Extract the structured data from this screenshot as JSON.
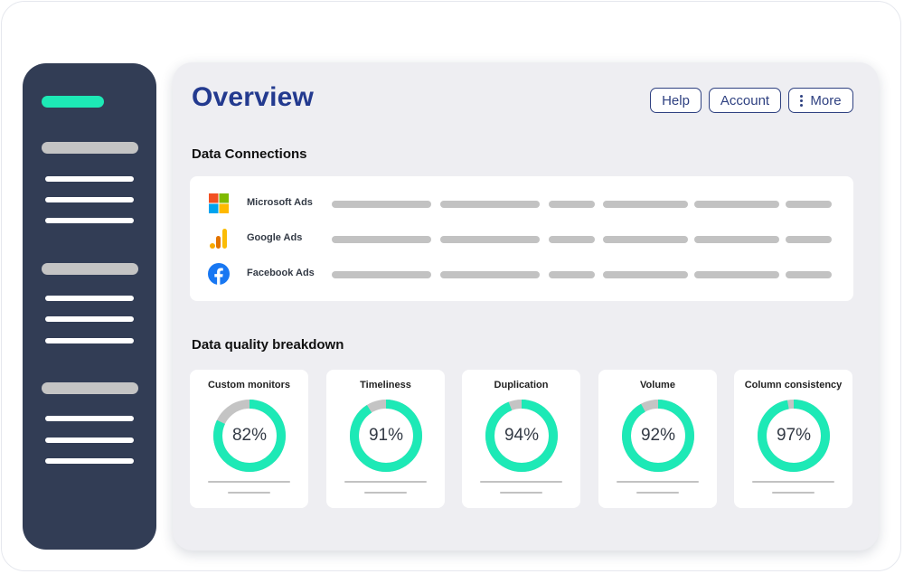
{
  "main": {
    "title": "Overview",
    "header_buttons": {
      "help": "Help",
      "account": "Account",
      "more": "More"
    },
    "connections_title": "Data Connections",
    "connections": [
      {
        "name": "Microsoft Ads",
        "icon": "microsoft-icon"
      },
      {
        "name": "Google Ads",
        "icon": "google-ads-icon"
      },
      {
        "name": "Facebook Ads",
        "icon": "facebook-icon"
      }
    ],
    "quality_title": "Data quality breakdown",
    "quality": [
      {
        "label": "Custom monitors",
        "value": 82,
        "display": "82%"
      },
      {
        "label": "Timeliness",
        "value": 91,
        "display": "91%"
      },
      {
        "label": "Duplication",
        "value": 94,
        "display": "94%"
      },
      {
        "label": "Volume",
        "value": 92,
        "display": "92%"
      },
      {
        "label": "Column consistency",
        "value": 97,
        "display": "97%"
      }
    ]
  },
  "colors": {
    "sidebar": "#323d55",
    "accent": "#1de9b6",
    "title": "#233a8f",
    "placeholder": "#c2c2c2"
  }
}
